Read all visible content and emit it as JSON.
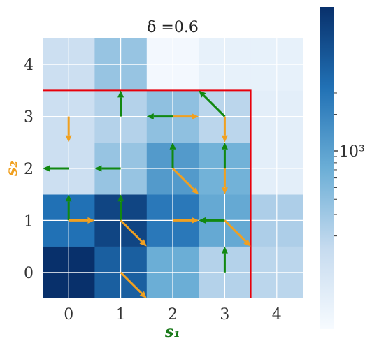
{
  "chart_data": {
    "type": "heatmap",
    "title": "δ =0.6",
    "xlabel": "s₁",
    "ylabel": "s₂",
    "xlabel_color": "#1a7a1a",
    "ylabel_color": "#f0a020",
    "x_ticks": [
      "0",
      "1",
      "2",
      "3",
      "4"
    ],
    "y_ticks": [
      "0",
      "1",
      "2",
      "3",
      "4"
    ],
    "colormap": "Blues",
    "colorbar": {
      "scale": "log",
      "labeled_tick": "10³"
    },
    "grid": true,
    "cell_color_levels": [
      [
        1.0,
        0.82,
        0.5,
        0.3,
        0.28
      ],
      [
        0.75,
        0.92,
        0.72,
        0.52,
        0.32
      ],
      [
        0.22,
        0.38,
        0.58,
        0.48,
        0.1
      ],
      [
        0.22,
        0.3,
        0.4,
        0.28,
        0.1
      ],
      [
        0.22,
        0.38,
        0.02,
        0.08,
        0.08
      ]
    ],
    "boundary": {
      "x_range": [
        -0.5,
        3.5
      ],
      "y_range": [
        -0.5,
        3.5
      ],
      "color": "#e8000b"
    },
    "arrows": [
      {
        "x": 1,
        "y": 3,
        "dx": 0,
        "dy": 0.5,
        "color": "#118811"
      },
      {
        "x": 2,
        "y": 3,
        "dx": -0.5,
        "dy": 0,
        "color": "#118811"
      },
      {
        "x": 2,
        "y": 3,
        "dx": 0.5,
        "dy": 0,
        "color": "#f0a020"
      },
      {
        "x": 3,
        "y": 3,
        "dx": -0.5,
        "dy": 0.5,
        "color": "#118811"
      },
      {
        "x": 3,
        "y": 3,
        "dx": 0,
        "dy": -0.5,
        "color": "#f0a020"
      },
      {
        "x": 0,
        "y": 3,
        "dx": 0,
        "dy": -0.5,
        "color": "#f0a020"
      },
      {
        "x": 0,
        "y": 2,
        "dx": -0.5,
        "dy": 0,
        "color": "#118811"
      },
      {
        "x": 1,
        "y": 2,
        "dx": -0.5,
        "dy": 0,
        "color": "#118811"
      },
      {
        "x": 2,
        "y": 2,
        "dx": 0,
        "dy": 0.5,
        "color": "#118811"
      },
      {
        "x": 2,
        "y": 2,
        "dx": 0.5,
        "dy": -0.5,
        "color": "#f0a020"
      },
      {
        "x": 3,
        "y": 2,
        "dx": 0,
        "dy": 0.5,
        "color": "#118811"
      },
      {
        "x": 3,
        "y": 2,
        "dx": 0,
        "dy": -0.5,
        "color": "#f0a020"
      },
      {
        "x": 0,
        "y": 1,
        "dx": 0,
        "dy": 0.5,
        "color": "#118811"
      },
      {
        "x": 0,
        "y": 1,
        "dx": 0.5,
        "dy": 0,
        "color": "#f0a020"
      },
      {
        "x": 1,
        "y": 1,
        "dx": 0,
        "dy": 0.5,
        "color": "#118811"
      },
      {
        "x": 1,
        "y": 1,
        "dx": 0.5,
        "dy": -0.5,
        "color": "#f0a020"
      },
      {
        "x": 2,
        "y": 1,
        "dx": 0.5,
        "dy": 0,
        "color": "#f0a020"
      },
      {
        "x": 3,
        "y": 1,
        "dx": -0.5,
        "dy": 0,
        "color": "#118811"
      },
      {
        "x": 3,
        "y": 1,
        "dx": 0.5,
        "dy": -0.5,
        "color": "#f0a020"
      },
      {
        "x": 3,
        "y": 0,
        "dx": 0,
        "dy": 0.5,
        "color": "#118811"
      },
      {
        "x": 1,
        "y": 0,
        "dx": 0.5,
        "dy": -0.5,
        "color": "#f0a020"
      }
    ]
  }
}
